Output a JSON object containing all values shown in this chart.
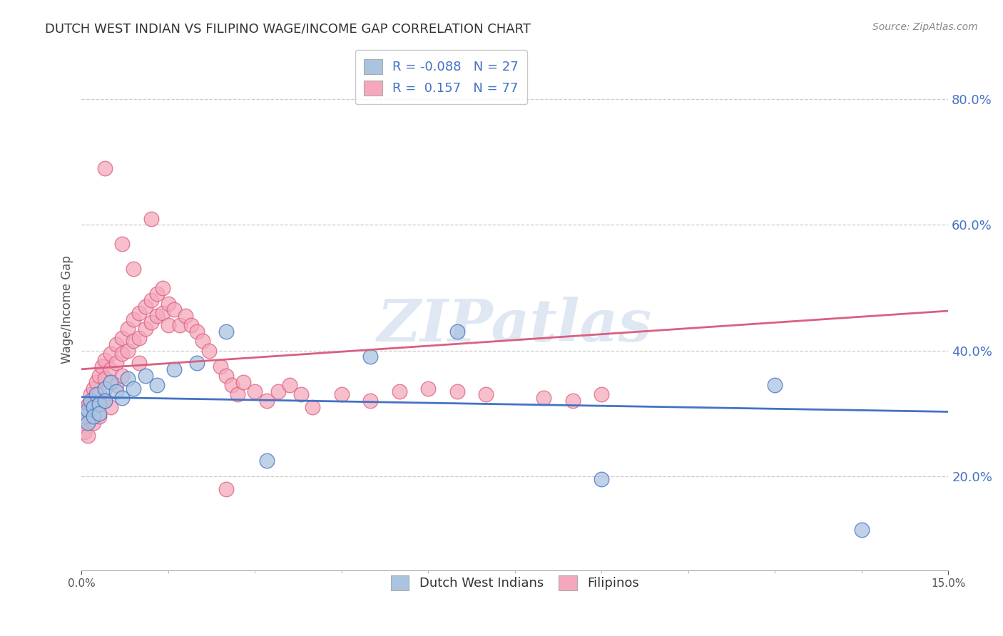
{
  "title": "DUTCH WEST INDIAN VS FILIPINO WAGE/INCOME GAP CORRELATION CHART",
  "source": "Source: ZipAtlas.com",
  "ylabel": "Wage/Income Gap",
  "y_ticks": [
    0.2,
    0.4,
    0.6,
    0.8
  ],
  "y_tick_labels": [
    "20.0%",
    "40.0%",
    "60.0%",
    "80.0%"
  ],
  "xmin": 0.0,
  "xmax": 0.15,
  "ymin": 0.05,
  "ymax": 0.88,
  "dwi_color": "#aac4e0",
  "fil_color": "#f5a8bc",
  "dwi_line_color": "#4472c4",
  "fil_line_color": "#d96080",
  "watermark": "ZIPatlas",
  "watermark_color": "#c5d5e8",
  "dwi_R": -0.088,
  "dwi_N": 27,
  "fil_R": 0.157,
  "fil_N": 77,
  "dwi_x": [
    0.0005,
    0.001,
    0.001,
    0.0015,
    0.002,
    0.002,
    0.0025,
    0.003,
    0.003,
    0.004,
    0.004,
    0.005,
    0.006,
    0.007,
    0.008,
    0.009,
    0.011,
    0.013,
    0.016,
    0.02,
    0.025,
    0.032,
    0.05,
    0.065,
    0.09,
    0.12,
    0.135
  ],
  "dwi_y": [
    0.295,
    0.305,
    0.285,
    0.32,
    0.31,
    0.295,
    0.33,
    0.315,
    0.3,
    0.34,
    0.32,
    0.35,
    0.335,
    0.325,
    0.355,
    0.34,
    0.36,
    0.345,
    0.37,
    0.38,
    0.43,
    0.225,
    0.39,
    0.43,
    0.195,
    0.345,
    0.115
  ],
  "fil_x": [
    0.0003,
    0.0005,
    0.0008,
    0.001,
    0.001,
    0.0012,
    0.0015,
    0.0015,
    0.002,
    0.002,
    0.002,
    0.0025,
    0.003,
    0.003,
    0.003,
    0.0035,
    0.004,
    0.004,
    0.004,
    0.005,
    0.005,
    0.005,
    0.006,
    0.006,
    0.006,
    0.007,
    0.007,
    0.007,
    0.008,
    0.008,
    0.009,
    0.009,
    0.01,
    0.01,
    0.01,
    0.011,
    0.011,
    0.012,
    0.012,
    0.013,
    0.013,
    0.014,
    0.014,
    0.015,
    0.015,
    0.016,
    0.017,
    0.018,
    0.019,
    0.02,
    0.021,
    0.022,
    0.024,
    0.025,
    0.026,
    0.027,
    0.028,
    0.03,
    0.032,
    0.034,
    0.036,
    0.038,
    0.04,
    0.045,
    0.05,
    0.055,
    0.06,
    0.065,
    0.07,
    0.08,
    0.085,
    0.09,
    0.004,
    0.007,
    0.009,
    0.012,
    0.025
  ],
  "fil_y": [
    0.285,
    0.27,
    0.31,
    0.295,
    0.265,
    0.315,
    0.33,
    0.305,
    0.34,
    0.31,
    0.285,
    0.35,
    0.36,
    0.33,
    0.295,
    0.375,
    0.355,
    0.385,
    0.32,
    0.395,
    0.37,
    0.31,
    0.41,
    0.38,
    0.345,
    0.42,
    0.395,
    0.36,
    0.435,
    0.4,
    0.45,
    0.415,
    0.46,
    0.42,
    0.38,
    0.47,
    0.435,
    0.48,
    0.445,
    0.49,
    0.455,
    0.5,
    0.46,
    0.475,
    0.44,
    0.465,
    0.44,
    0.455,
    0.44,
    0.43,
    0.415,
    0.4,
    0.375,
    0.36,
    0.345,
    0.33,
    0.35,
    0.335,
    0.32,
    0.335,
    0.345,
    0.33,
    0.31,
    0.33,
    0.32,
    0.335,
    0.34,
    0.335,
    0.33,
    0.325,
    0.32,
    0.33,
    0.69,
    0.57,
    0.53,
    0.61,
    0.18
  ]
}
